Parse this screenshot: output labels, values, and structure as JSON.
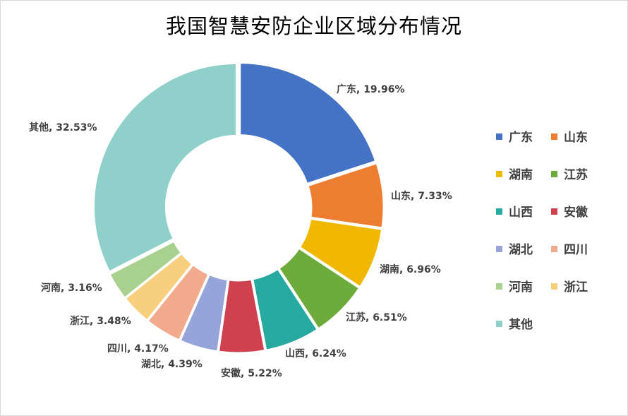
{
  "chart_data": {
    "type": "pie",
    "variant": "donut",
    "title": "我国智慧安防企业区域分布情况",
    "legend_position": "right",
    "slices": [
      {
        "name": "广东",
        "value": 19.96,
        "label": "广东, 19.96%",
        "color": "#4472C4"
      },
      {
        "name": "山东",
        "value": 7.33,
        "label": "山东, 7.33%",
        "color": "#ED7D31"
      },
      {
        "name": "湖南",
        "value": 6.96,
        "label": "湖南, 6.96%",
        "color": "#F0B800"
      },
      {
        "name": "江苏",
        "value": 6.51,
        "label": "江苏, 6.51%",
        "color": "#6DAB3A"
      },
      {
        "name": "山西",
        "value": 6.24,
        "label": "山西, 6.24%",
        "color": "#26A99E"
      },
      {
        "name": "安徽",
        "value": 5.22,
        "label": "安徽, 5.22%",
        "color": "#D0414F"
      },
      {
        "name": "湖北",
        "value": 4.39,
        "label": "湖北, 4.39%",
        "color": "#96A5D9"
      },
      {
        "name": "四川",
        "value": 4.17,
        "label": "四川, 4.17%",
        "color": "#F2AA8C"
      },
      {
        "name": "浙江",
        "value": 3.48,
        "label": "浙江, 3.48%",
        "color": "#F7CF7E"
      },
      {
        "name": "河南",
        "value": 3.16,
        "label": "河南, 3.16%",
        "color": "#A9D18E"
      },
      {
        "name": "其他",
        "value": 32.53,
        "label": "其他, 32.53%",
        "color": "#8FD1CA"
      }
    ],
    "legend": [
      "广东",
      "山东",
      "湖南",
      "江苏",
      "山西",
      "安徽",
      "湖北",
      "四川",
      "河南",
      "浙江",
      "其他"
    ]
  }
}
